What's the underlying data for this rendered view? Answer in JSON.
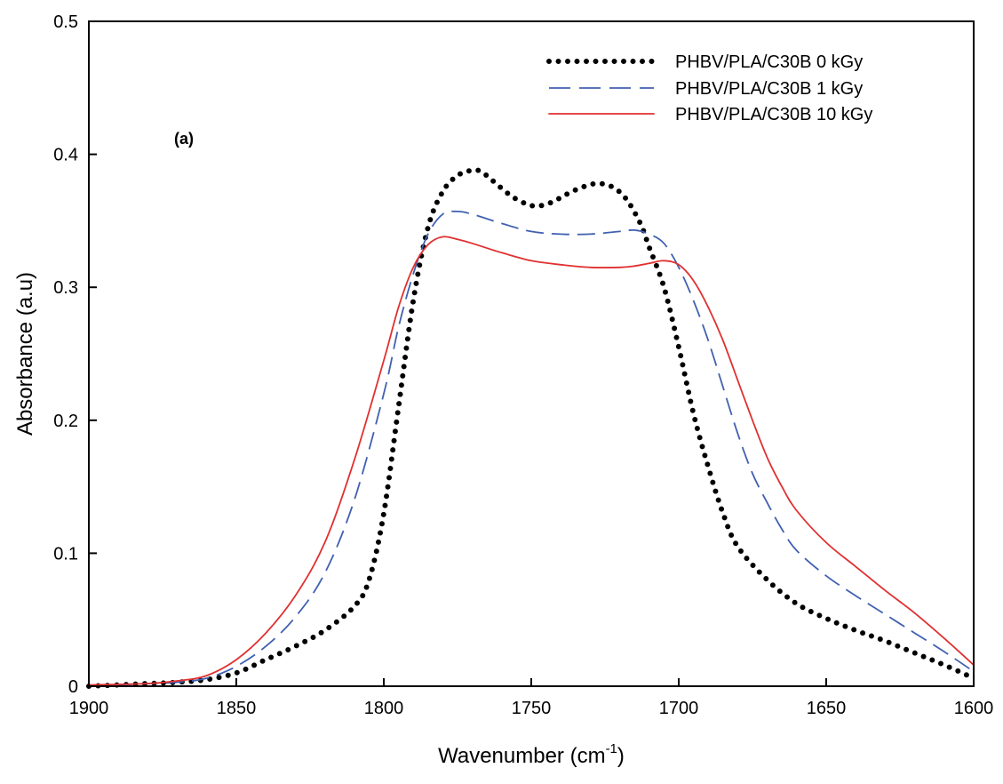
{
  "chart_data": {
    "type": "line",
    "title": "",
    "xlabel": "Wavenumber (cm",
    "xlabel_sup": "-1",
    "xlabel_suffix": ")",
    "ylabel": "Absorbance (a.u)",
    "xlim": [
      1900,
      1600
    ],
    "ylim": [
      0,
      0.5
    ],
    "x_reversed": true,
    "grid": false,
    "legend_position": "top-right",
    "annotation": "(a)",
    "x_ticks": [
      1900,
      1850,
      1800,
      1750,
      1700,
      1650,
      1600
    ],
    "x_tick_labels": [
      "1900",
      "1850",
      "1800",
      "1750",
      "1700",
      "1650",
      "1600"
    ],
    "y_ticks": [
      0,
      0.1,
      0.2,
      0.3,
      0.4,
      0.5
    ],
    "y_tick_labels": [
      "0",
      "0.1",
      "0.2",
      "0.3",
      "0.4",
      "0.5"
    ],
    "series": [
      {
        "name": "PHBV/PLA/C30B 0 kGy",
        "color": "#000000",
        "style": "dotted",
        "x": [
          1900,
          1880,
          1870,
          1860,
          1850,
          1840,
          1830,
          1820,
          1810,
          1805,
          1800,
          1795,
          1790,
          1785,
          1780,
          1775,
          1770,
          1767,
          1763,
          1757,
          1752,
          1748,
          1743,
          1738,
          1733,
          1728,
          1723,
          1718,
          1713,
          1710,
          1705,
          1700,
          1695,
          1690,
          1685,
          1680,
          1670,
          1660,
          1650,
          1640,
          1630,
          1620,
          1610,
          1600
        ],
        "y": [
          0.0,
          0.002,
          0.003,
          0.005,
          0.01,
          0.02,
          0.03,
          0.042,
          0.06,
          0.08,
          0.13,
          0.21,
          0.29,
          0.345,
          0.372,
          0.384,
          0.388,
          0.387,
          0.38,
          0.369,
          0.363,
          0.361,
          0.364,
          0.37,
          0.375,
          0.378,
          0.376,
          0.367,
          0.348,
          0.33,
          0.3,
          0.255,
          0.205,
          0.165,
          0.13,
          0.105,
          0.08,
          0.062,
          0.051,
          0.042,
          0.034,
          0.025,
          0.016,
          0.006
        ]
      },
      {
        "name": "PHBV/PLA/C30B 1 kGy",
        "color": "#4060b0",
        "style": "dashed",
        "x": [
          1900,
          1880,
          1870,
          1860,
          1850,
          1840,
          1830,
          1820,
          1810,
          1800,
          1795,
          1790,
          1785,
          1780,
          1775,
          1770,
          1760,
          1750,
          1740,
          1730,
          1720,
          1715,
          1710,
          1705,
          1700,
          1695,
          1690,
          1685,
          1680,
          1675,
          1670,
          1665,
          1660,
          1650,
          1640,
          1630,
          1620,
          1610,
          1600
        ],
        "y": [
          0.0,
          0.002,
          0.003,
          0.006,
          0.015,
          0.03,
          0.052,
          0.085,
          0.14,
          0.22,
          0.27,
          0.31,
          0.34,
          0.355,
          0.357,
          0.355,
          0.348,
          0.342,
          0.34,
          0.34,
          0.342,
          0.343,
          0.34,
          0.333,
          0.315,
          0.29,
          0.26,
          0.225,
          0.19,
          0.16,
          0.138,
          0.118,
          0.102,
          0.083,
          0.068,
          0.054,
          0.04,
          0.026,
          0.011
        ]
      },
      {
        "name": "PHBV/PLA/C30B 10 kGy",
        "color": "#e03030",
        "style": "solid",
        "x": [
          1900,
          1880,
          1870,
          1860,
          1850,
          1840,
          1830,
          1820,
          1810,
          1800,
          1795,
          1790,
          1785,
          1780,
          1775,
          1770,
          1760,
          1750,
          1740,
          1730,
          1720,
          1715,
          1710,
          1705,
          1700,
          1695,
          1690,
          1685,
          1680,
          1675,
          1670,
          1665,
          1660,
          1650,
          1640,
          1630,
          1620,
          1610,
          1600
        ],
        "y": [
          0.001,
          0.002,
          0.004,
          0.008,
          0.02,
          0.04,
          0.068,
          0.108,
          0.17,
          0.245,
          0.285,
          0.315,
          0.332,
          0.338,
          0.336,
          0.333,
          0.326,
          0.32,
          0.317,
          0.315,
          0.315,
          0.316,
          0.318,
          0.32,
          0.317,
          0.305,
          0.285,
          0.26,
          0.23,
          0.2,
          0.172,
          0.15,
          0.132,
          0.108,
          0.09,
          0.072,
          0.055,
          0.036,
          0.016
        ]
      }
    ]
  }
}
